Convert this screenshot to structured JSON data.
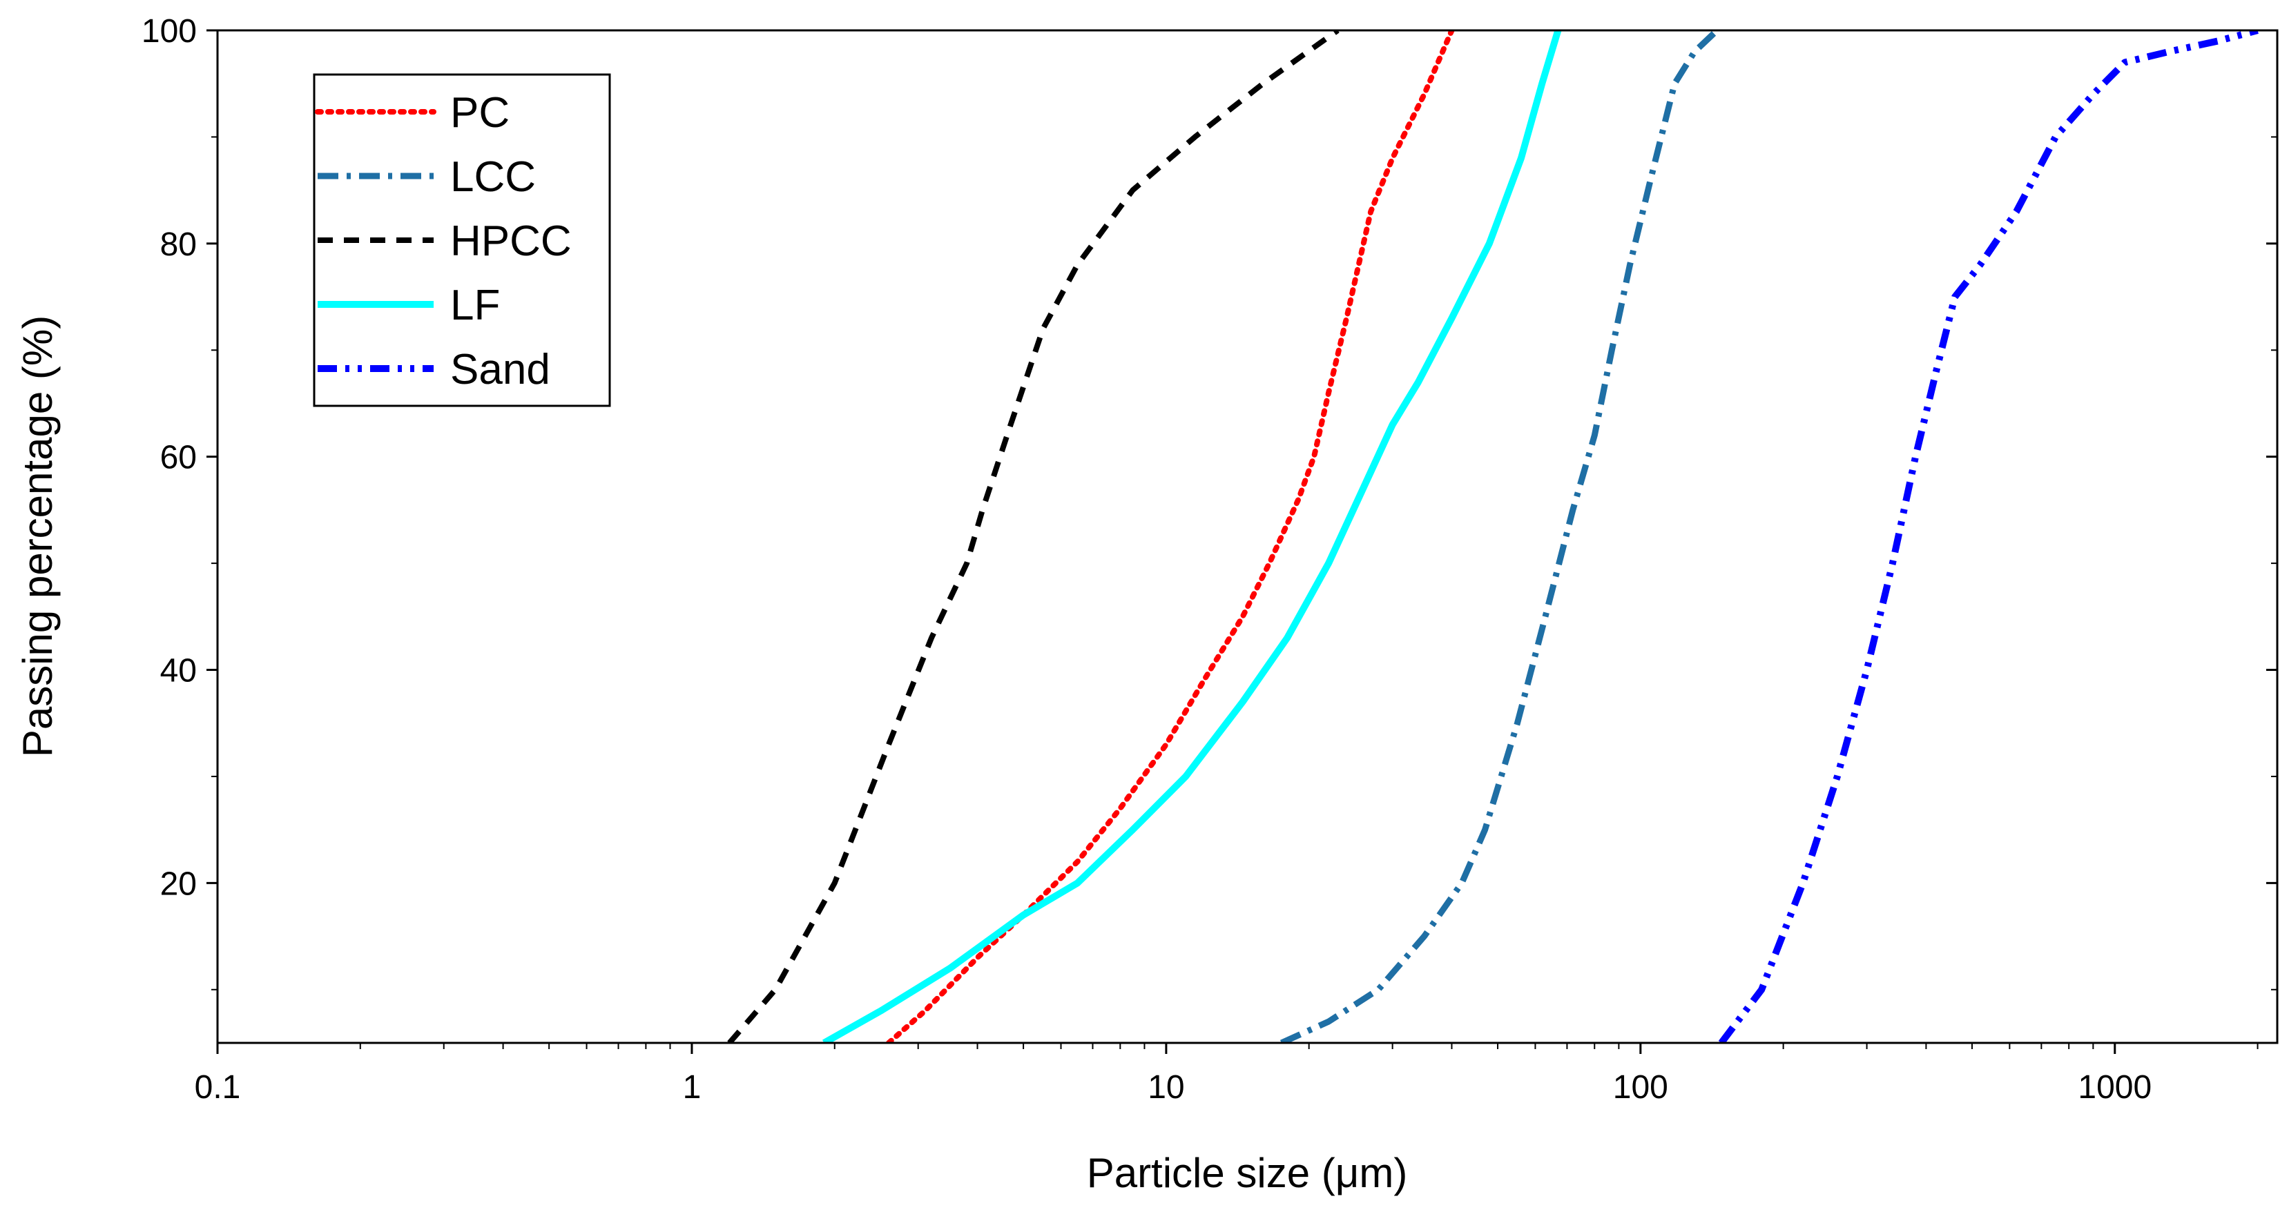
{
  "chart_data": {
    "type": "line",
    "title": "",
    "xlabel": "Particle size (μm)",
    "ylabel": "Passing percentage (%)",
    "xscale": "log",
    "xlim": [
      0.1,
      2200
    ],
    "ylim": [
      5,
      100
    ],
    "x_ticks": [
      {
        "value": 0.1,
        "label": "0.1"
      },
      {
        "value": 1,
        "label": "1"
      },
      {
        "value": 10,
        "label": "10"
      },
      {
        "value": 100,
        "label": "100"
      },
      {
        "value": 1000,
        "label": "1000"
      }
    ],
    "y_ticks": [
      {
        "value": 20,
        "label": "20"
      },
      {
        "value": 40,
        "label": "40"
      },
      {
        "value": 60,
        "label": "60"
      },
      {
        "value": 80,
        "label": "80"
      },
      {
        "value": 100,
        "label": "100"
      }
    ],
    "legend_position": "top-left",
    "series": [
      {
        "name": "PC",
        "color": "#ff0000",
        "dash": "dotted",
        "x": [
          2.6,
          3.1,
          4.0,
          5.0,
          6.5,
          8.0,
          10,
          12,
          14.5,
          16.5,
          19,
          20.5,
          22,
          24,
          27,
          30,
          35,
          40
        ],
        "y": [
          5,
          8,
          13,
          17,
          22,
          27,
          33,
          39,
          45,
          50,
          56,
          60,
          66,
          73,
          83,
          88,
          94,
          100
        ]
      },
      {
        "name": "LCC",
        "color": "#1f6fa5",
        "dash": "dashdot",
        "x": [
          17.5,
          22,
          28,
          35,
          42,
          47,
          55,
          63,
          72,
          80,
          87,
          95,
          105,
          118,
          130,
          145
        ],
        "y": [
          5,
          7,
          10,
          15,
          20,
          25,
          35,
          45,
          55,
          62,
          70,
          78,
          86,
          95,
          98,
          100
        ]
      },
      {
        "name": "HPCC",
        "color": "#000000",
        "dash": "dashed",
        "x": [
          1.2,
          1.5,
          2.0,
          2.6,
          3.2,
          3.8,
          4.1,
          4.7,
          5.5,
          6.5,
          8.5,
          11.5,
          16,
          23
        ],
        "y": [
          5,
          10,
          20,
          33,
          43,
          50,
          55,
          63,
          72,
          78,
          85,
          90,
          95,
          100
        ]
      },
      {
        "name": "LF",
        "color": "#00ffff",
        "dash": "solid",
        "x": [
          1.9,
          2.5,
          3.5,
          5.0,
          6.5,
          8.5,
          11,
          14.5,
          18,
          22,
          26,
          30,
          34,
          40,
          48,
          56,
          62,
          67
        ],
        "y": [
          5,
          8,
          12,
          17,
          20,
          25,
          30,
          37,
          43,
          50,
          57,
          63,
          67,
          73,
          80,
          88,
          95,
          100
        ]
      },
      {
        "name": "Sand",
        "color": "#0000ff",
        "dash": "dashdotdot",
        "x": [
          148,
          180,
          220,
          260,
          300,
          340,
          380,
          420,
          460,
          520,
          620,
          750,
          900,
          1050,
          1300,
          1650,
          2000
        ],
        "y": [
          5,
          10,
          20,
          30,
          40,
          50,
          60,
          68,
          75,
          78,
          83,
          90,
          94,
          97,
          98,
          99,
          100
        ]
      }
    ]
  }
}
